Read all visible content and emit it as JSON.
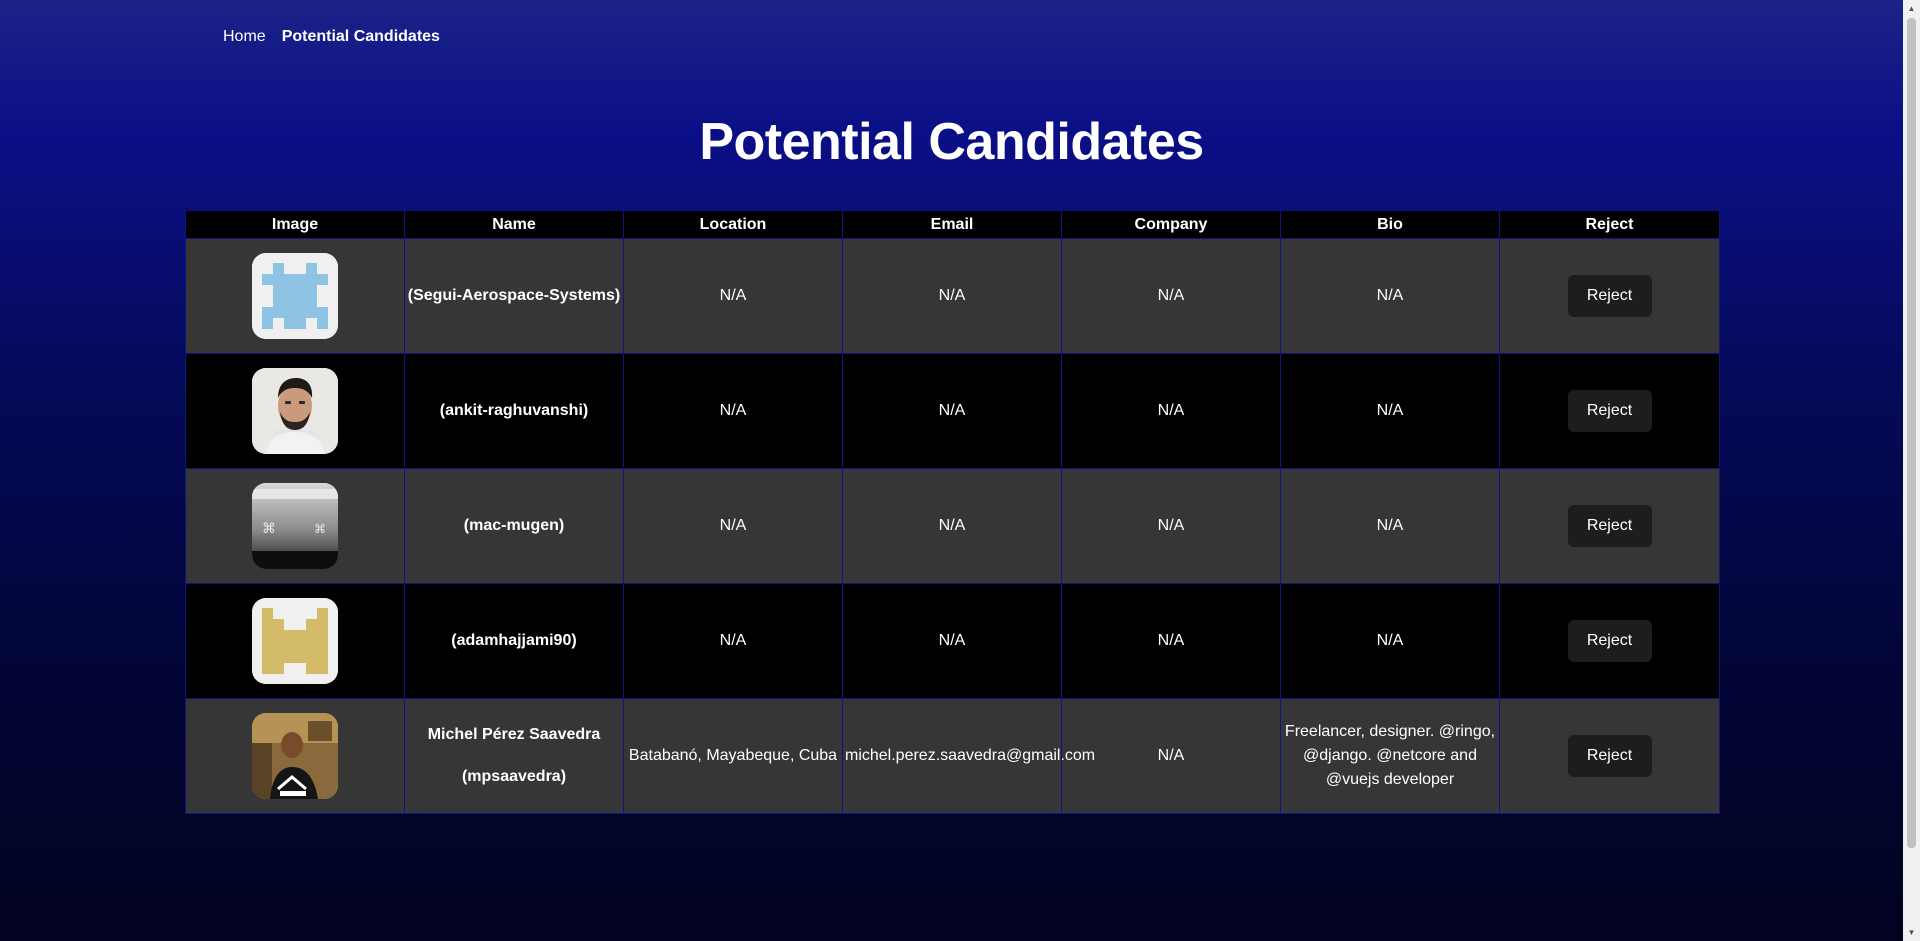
{
  "nav": {
    "home": "Home",
    "current": "Potential Candidates"
  },
  "page": {
    "title": "Potential Candidates"
  },
  "table": {
    "headers": [
      "Image",
      "Name",
      "Location",
      "Email",
      "Company",
      "Bio",
      "Reject"
    ],
    "reject_label": "Reject",
    "rows": [
      {
        "avatar": "identicon-blue",
        "name": "",
        "username": "(Segui-Aerospace-Systems)",
        "location": "N/A",
        "email": "N/A",
        "company": "N/A",
        "bio": "N/A"
      },
      {
        "avatar": "photo-man-beard",
        "name": "",
        "username": "(ankit-raghuvanshi)",
        "location": "N/A",
        "email": "N/A",
        "company": "N/A",
        "bio": "N/A"
      },
      {
        "avatar": "photo-keyboard-key",
        "name": "",
        "username": "(mac-mugen)",
        "location": "N/A",
        "email": "N/A",
        "company": "N/A",
        "bio": "N/A"
      },
      {
        "avatar": "identicon-gold",
        "name": "",
        "username": "(adamhajjami90)",
        "location": "N/A",
        "email": "N/A",
        "company": "N/A",
        "bio": "N/A"
      },
      {
        "avatar": "photo-man-shirt",
        "name": "Michel Pérez Saavedra",
        "username": "(mpsaavedra)",
        "location": "Batabanó, Mayabeque, Cuba",
        "email": "michel.perez.saavedra@gmail.com",
        "company": "N/A",
        "bio": "Freelancer, designer. @ringo, @django. @netcore and @vuejs developer"
      }
    ]
  },
  "colors": {
    "identicon_blue": "#8fc3e3",
    "identicon_gold": "#d4bb6a",
    "row_dark": "#363636",
    "row_black": "#000000"
  }
}
